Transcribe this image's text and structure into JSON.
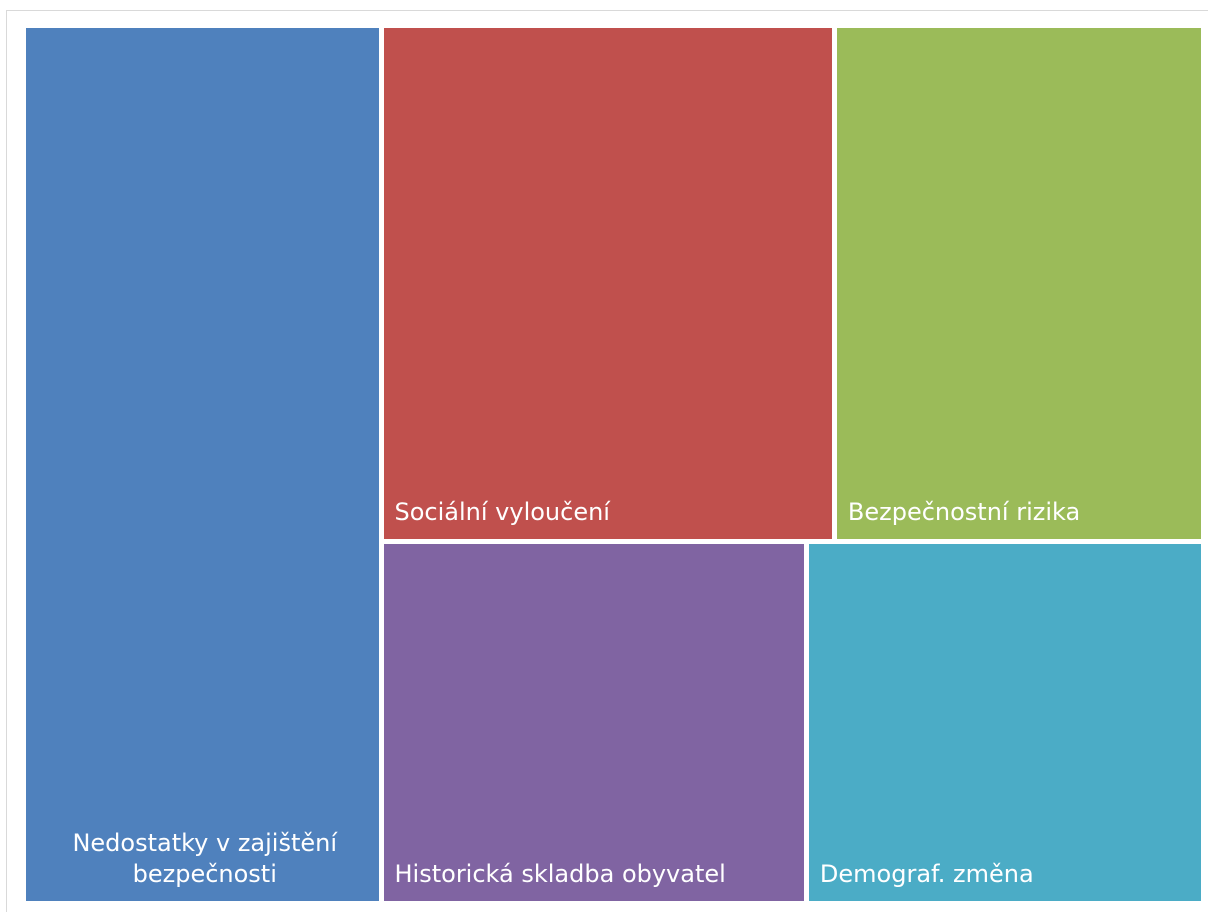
{
  "chart_data": {
    "type": "treemap",
    "title": "",
    "nodes": [
      {
        "label": "Nedostatky v zajištění bezpečnosti",
        "value": 30,
        "color": "#4f81bd"
      },
      {
        "label": "Sociální vyloučení",
        "value": 22.6,
        "color": "#c0504d"
      },
      {
        "label": "Bezpečnostní rizika",
        "value": 18.4,
        "color": "#9bbb59"
      },
      {
        "label": "Historická skladba obyvatel",
        "value": 15,
        "color": "#8064a2"
      },
      {
        "label": "Demograf. změna",
        "value": 14,
        "color": "#4bacc6"
      }
    ]
  }
}
